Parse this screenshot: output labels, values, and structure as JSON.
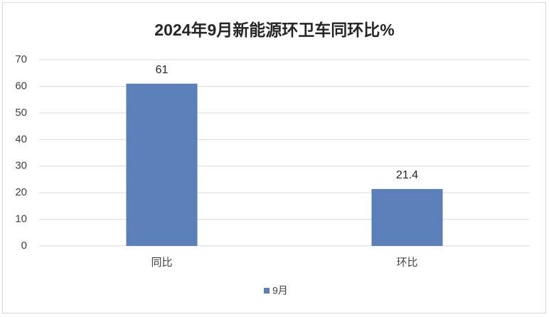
{
  "chart_data": {
    "type": "bar",
    "title": "2024年9月新能源环卫车同环比%",
    "categories": [
      "同比",
      "环比"
    ],
    "series": [
      {
        "name": "9月",
        "color": "#5b80b9",
        "values": [
          61,
          21.4
        ]
      }
    ],
    "ylim": [
      0,
      70
    ],
    "yticks": [
      0,
      10,
      20,
      30,
      40,
      50,
      60,
      70
    ],
    "grid": true,
    "legend": "bottom"
  }
}
